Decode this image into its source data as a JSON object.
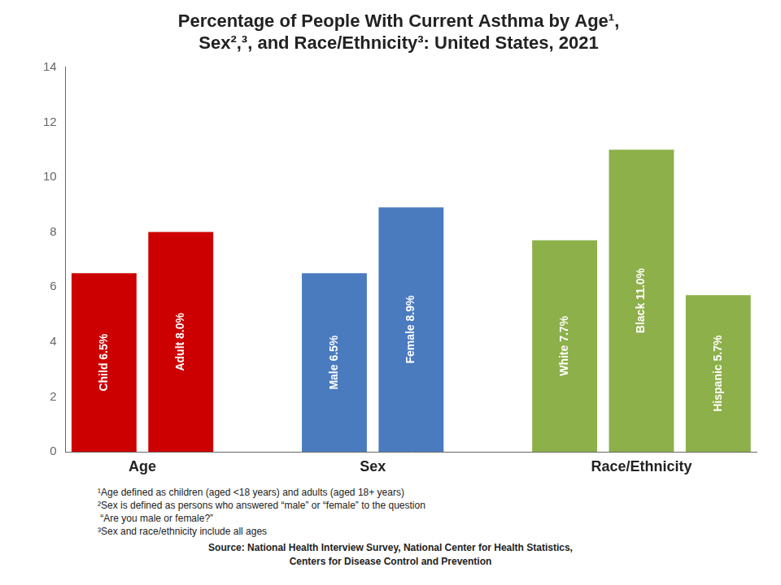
{
  "chart_data": {
    "type": "bar",
    "title": "Percentage of People With Current Asthma by Age¹,\nSex²,³, and Race/Ethnicity³: United States, 2021",
    "categories": [
      "Child 6.5%",
      "Adult 8.0%",
      "Male 6.5%",
      "Female 8.9%",
      "White 7.7%",
      "Black 11.0%",
      "Hispanic 5.7%"
    ],
    "values": [
      6.5,
      8.0,
      6.5,
      8.9,
      7.7,
      11.0,
      5.7
    ],
    "groups": [
      "Age",
      "Age",
      "Sex",
      "Sex",
      "Race/Ethnicity",
      "Race/Ethnicity",
      "Race/Ethnicity"
    ],
    "colors": [
      "#cc0000",
      "#cc0000",
      "#4a7bbf",
      "#4a7bbf",
      "#8db04a",
      "#8db04a",
      "#8db04a"
    ],
    "ylim": [
      0,
      14
    ],
    "yticks": [
      0,
      2,
      4,
      6,
      8,
      10,
      12,
      14
    ],
    "grid": false,
    "tick_labels": "y",
    "annotations": [
      "¹Age defined as children (aged <18 years) and adults (aged 18+ years)",
      "²Sex is defined as persons who answered “male” or “female” to the question",
      " “Are you male or female?”",
      "³Sex and race/ethnicity include all ages"
    ],
    "source": [
      "Source: National Health Interview Survey, National Center for Health Statistics,",
      "Centers for Disease Control and Prevention"
    ]
  }
}
